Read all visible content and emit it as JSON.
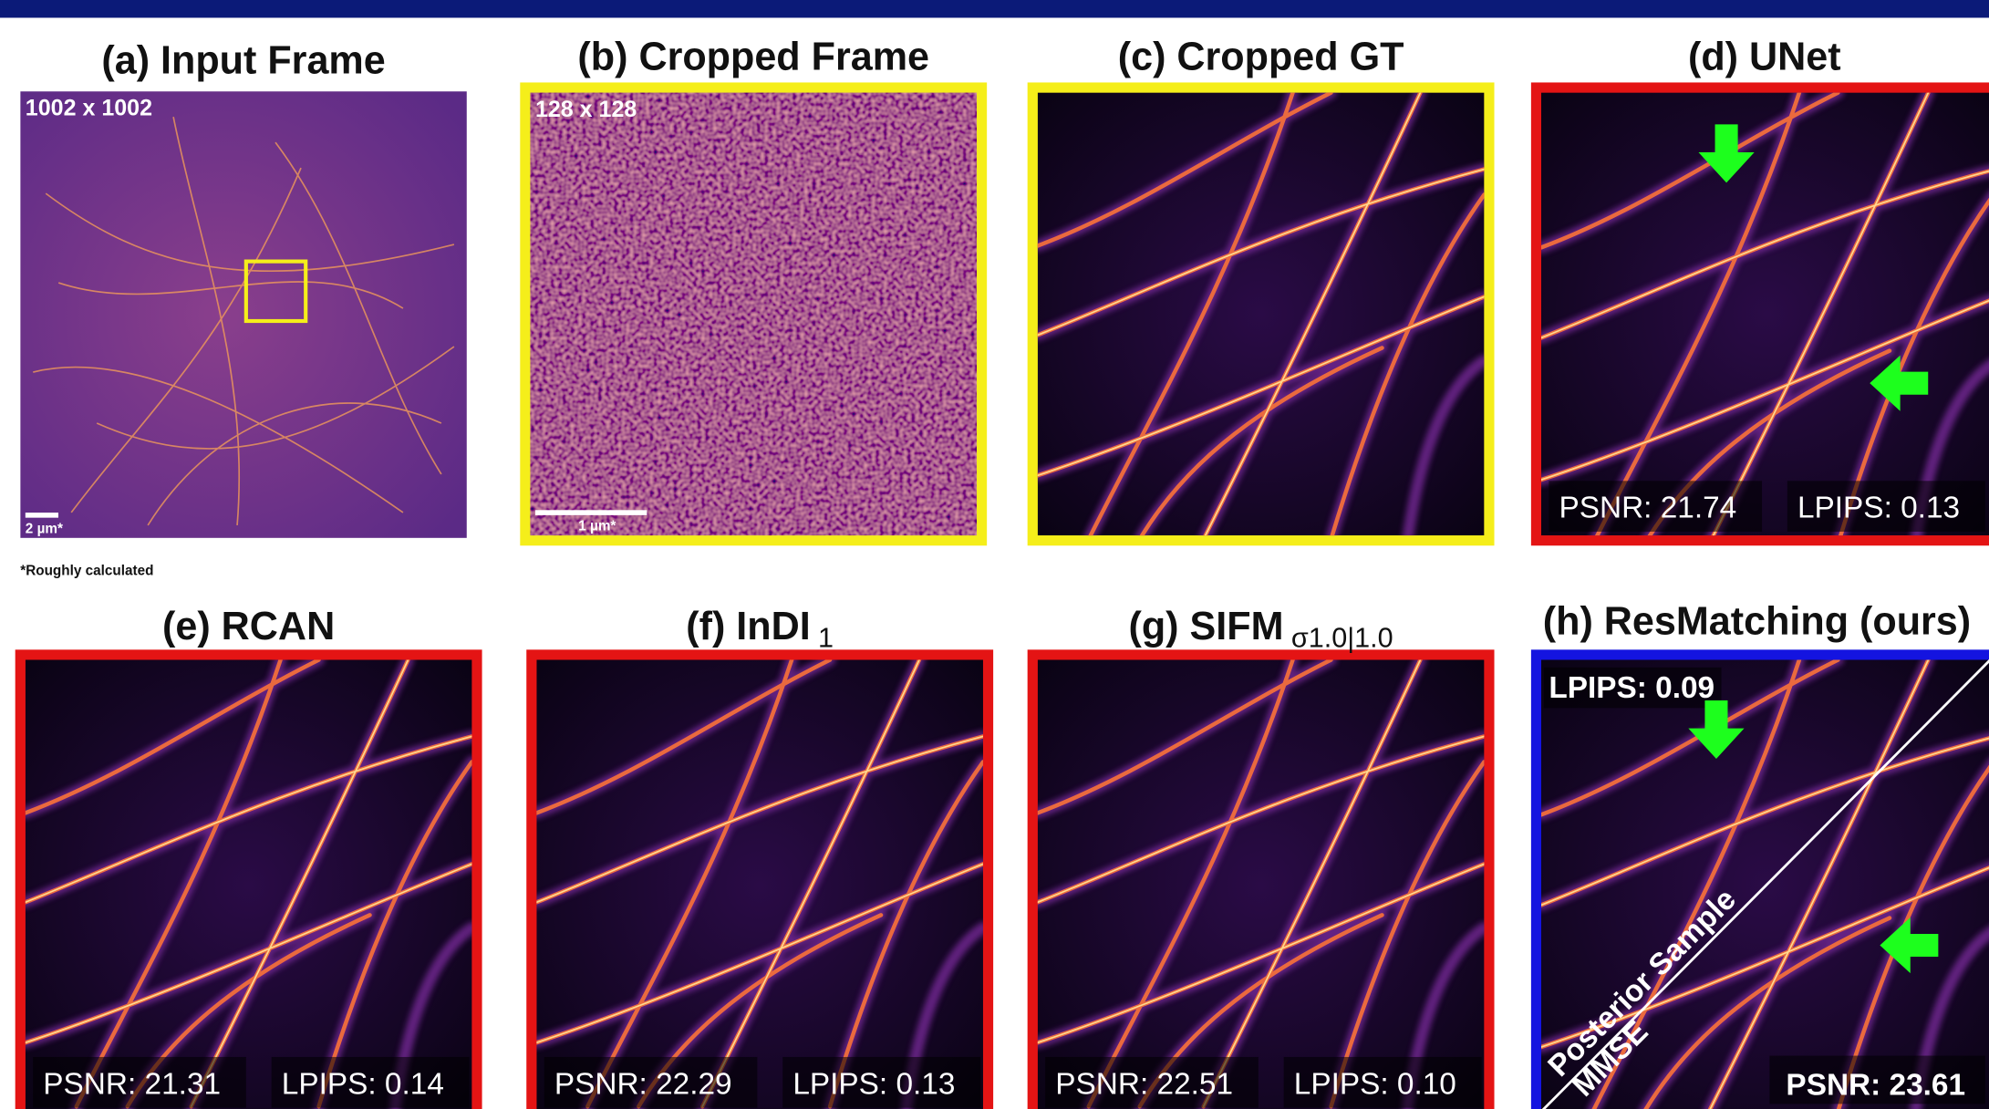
{
  "panels": [
    {
      "title": "(a) Input Frame",
      "size_label": "1002 x 1002",
      "scale_bar": "2 µm*"
    },
    {
      "title": "(b) Cropped Frame",
      "size_label": "128 x 128",
      "scale_bar": "1 µm*"
    },
    {
      "title": "(c) Cropped GT"
    },
    {
      "title": "(d) UNet",
      "psnr": "PSNR: 21.74",
      "lpips": "LPIPS: 0.13"
    },
    {
      "title": "(e) RCAN",
      "psnr": "PSNR: 21.31",
      "lpips": "LPIPS: 0.14"
    },
    {
      "title": "(f) InDI",
      "title_subscript": "1",
      "psnr": "PSNR: 22.29",
      "lpips": "LPIPS: 0.13"
    },
    {
      "title": "(g) SIFM",
      "title_subscript": "σ1.0|1.0",
      "psnr": "PSNR: 22.51",
      "lpips": "LPIPS: 0.10"
    },
    {
      "title": "(h) ResMatching (ours)",
      "lpips": "LPIPS: 0.09",
      "psnr": "PSNR: 23.61",
      "diagonal_labels": [
        "Posterior Sample",
        "MMSE"
      ]
    }
  ],
  "footnote": "*Roughly calculated"
}
